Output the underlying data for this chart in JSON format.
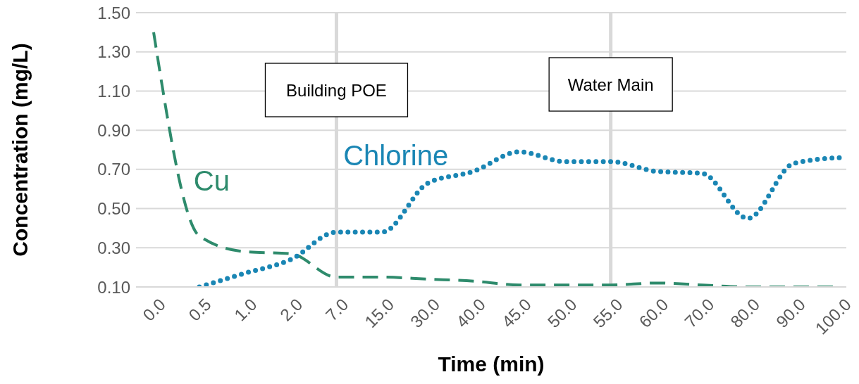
{
  "chart_data": {
    "type": "line",
    "xlabel": "Time (min)",
    "ylabel": "Concentration (mg/L)",
    "categories": [
      "0.0",
      "0.5",
      "1.0",
      "2.0",
      "7.0",
      "15.0",
      "30.0",
      "40.0",
      "45.0",
      "50.0",
      "55.0",
      "60.0",
      "70.0",
      "80.0",
      "90.0",
      "100.0"
    ],
    "series": [
      {
        "name": "Cu",
        "color": "#2e8b6c",
        "line_style": "dashed",
        "values": [
          1.4,
          0.36,
          0.28,
          0.27,
          0.15,
          0.15,
          0.14,
          0.13,
          0.11,
          0.11,
          0.11,
          0.12,
          0.11,
          0.1,
          0.1,
          0.1
        ]
      },
      {
        "name": "Chlorine",
        "color": "#1a86b4",
        "line_style": "dotted",
        "values": [
          null,
          0.1,
          0.17,
          0.24,
          0.38,
          0.38,
          0.63,
          0.69,
          0.79,
          0.74,
          0.74,
          0.69,
          0.68,
          0.45,
          0.73,
          0.76
        ]
      }
    ],
    "ylim": [
      0.1,
      1.5
    ],
    "yticks": [
      {
        "value": 0.1,
        "label": "0.10"
      },
      {
        "value": 0.3,
        "label": "0.30"
      },
      {
        "value": 0.5,
        "label": "0.50"
      },
      {
        "value": 0.7,
        "label": "0.70"
      },
      {
        "value": 0.9,
        "label": "0.90"
      },
      {
        "value": 1.1,
        "label": "1.10"
      },
      {
        "value": 1.3,
        "label": "1.30"
      },
      {
        "value": 1.5,
        "label": "1.50"
      }
    ],
    "ref_lines": [
      {
        "axis": "x",
        "value": "7.0",
        "label": "Building POE",
        "color": "#d9d9d9"
      },
      {
        "axis": "x",
        "value": "55.0",
        "label": "Water Main",
        "color": "#d9d9d9"
      }
    ],
    "grid": "y",
    "legend": false,
    "marker": "none"
  }
}
